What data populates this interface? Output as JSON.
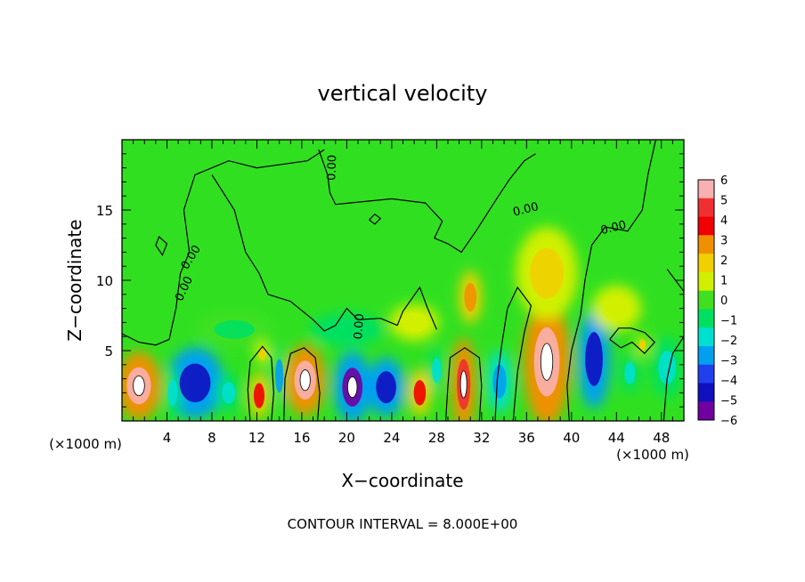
{
  "chart_data": {
    "type": "heatmap",
    "title": "vertical velocity",
    "xlabel": "X−coordinate",
    "ylabel": "Z−coordinate",
    "x_unit_left": "(×1000 m)",
    "x_unit_right": "(×1000 m)",
    "footer": "CONTOUR INTERVAL = 8.000E+00",
    "xlim": [
      0,
      50
    ],
    "ylim": [
      0,
      20
    ],
    "x_ticks": [
      4,
      8,
      12,
      16,
      20,
      24,
      28,
      32,
      36,
      40,
      44,
      48
    ],
    "y_ticks": [
      5,
      10,
      15
    ],
    "x_tick_labels": [
      "4",
      "8",
      "12",
      "16",
      "20",
      "24",
      "28",
      "32",
      "36",
      "40",
      "44",
      "48"
    ],
    "y_tick_labels": [
      "5",
      "10",
      "15"
    ],
    "colorbar": {
      "levels": [
        6,
        5,
        4,
        3,
        2,
        1,
        0,
        -1,
        -2,
        -3,
        -4,
        -5,
        -6
      ],
      "labels": [
        "6",
        "5",
        "4",
        "3",
        "2",
        "1",
        "0",
        "−1",
        "−2",
        "−3",
        "−4",
        "−5",
        "−6"
      ],
      "colors": [
        "#f8b0b0",
        "#f03030",
        "#f00000",
        "#f09000",
        "#f0d000",
        "#d0f000",
        "#40e020",
        "#00e060",
        "#00e0d0",
        "#00a0f0",
        "#2040f0",
        "#1010c0",
        "#7000a0"
      ]
    },
    "contour_labels": [
      "0.00",
      "0.00",
      "0.00",
      "0.00",
      "0.00",
      "0.00"
    ],
    "cells": [
      {
        "x": 1.5,
        "z": 2.5,
        "w": 3.6,
        "h": 4.4,
        "v": 5.8
      },
      {
        "x": 6.5,
        "z": 2.7,
        "w": 4.6,
        "h": 4.6,
        "v": -4.8
      },
      {
        "x": 4.5,
        "z": 2.0,
        "w": 1.4,
        "h": 3.2,
        "v": -2.0
      },
      {
        "x": 9.5,
        "z": 2.0,
        "w": 2.0,
        "h": 2.6,
        "v": -2.4
      },
      {
        "x": 12.2,
        "z": 1.8,
        "w": 1.6,
        "h": 3.0,
        "v": 3.8
      },
      {
        "x": 12.5,
        "z": 4.8,
        "w": 1.2,
        "h": 1.6,
        "v": 2.4
      },
      {
        "x": 14.0,
        "z": 3.2,
        "w": 1.2,
        "h": 4.0,
        "v": -2.6
      },
      {
        "x": 16.3,
        "z": 2.9,
        "w": 3.2,
        "h": 4.6,
        "v": 5.6
      },
      {
        "x": 20.5,
        "z": 2.4,
        "w": 3.0,
        "h": 4.6,
        "v": -5.6
      },
      {
        "x": 23.5,
        "z": 2.4,
        "w": 3.0,
        "h": 3.8,
        "v": -4.6
      },
      {
        "x": 26.5,
        "z": 2.0,
        "w": 1.8,
        "h": 3.0,
        "v": 3.6
      },
      {
        "x": 28.0,
        "z": 3.6,
        "w": 1.4,
        "h": 3.0,
        "v": -2.2
      },
      {
        "x": 30.4,
        "z": 2.6,
        "w": 2.0,
        "h": 6.0,
        "v": 5.4
      },
      {
        "x": 33.6,
        "z": 2.8,
        "w": 2.0,
        "h": 4.0,
        "v": -3.4
      },
      {
        "x": 31.0,
        "z": 8.8,
        "w": 1.8,
        "h": 3.4,
        "v": 3.2
      },
      {
        "x": 37.8,
        "z": 4.2,
        "w": 3.8,
        "h": 8.2,
        "v": 5.9
      },
      {
        "x": 37.8,
        "z": 10.5,
        "w": 5.0,
        "h": 6.0,
        "v": 1.6
      },
      {
        "x": 42.0,
        "z": 4.4,
        "w": 2.6,
        "h": 6.4,
        "v": -5.2
      },
      {
        "x": 45.2,
        "z": 3.4,
        "w": 1.6,
        "h": 2.6,
        "v": -2.2
      },
      {
        "x": 46.3,
        "z": 5.4,
        "w": 1.0,
        "h": 1.4,
        "v": 2.0
      },
      {
        "x": 48.5,
        "z": 3.8,
        "w": 2.6,
        "h": 4.0,
        "v": -1.6
      },
      {
        "x": 26.0,
        "z": 7.0,
        "w": 4.0,
        "h": 2.4,
        "v": 1.2
      },
      {
        "x": 20.0,
        "z": 6.5,
        "w": 6.0,
        "h": 2.2,
        "v": -1.2
      },
      {
        "x": 10.0,
        "z": 6.5,
        "w": 6.0,
        "h": 2.2,
        "v": -0.8
      },
      {
        "x": 44.0,
        "z": 8.0,
        "w": 4.0,
        "h": 3.0,
        "v": 1.1
      }
    ]
  }
}
